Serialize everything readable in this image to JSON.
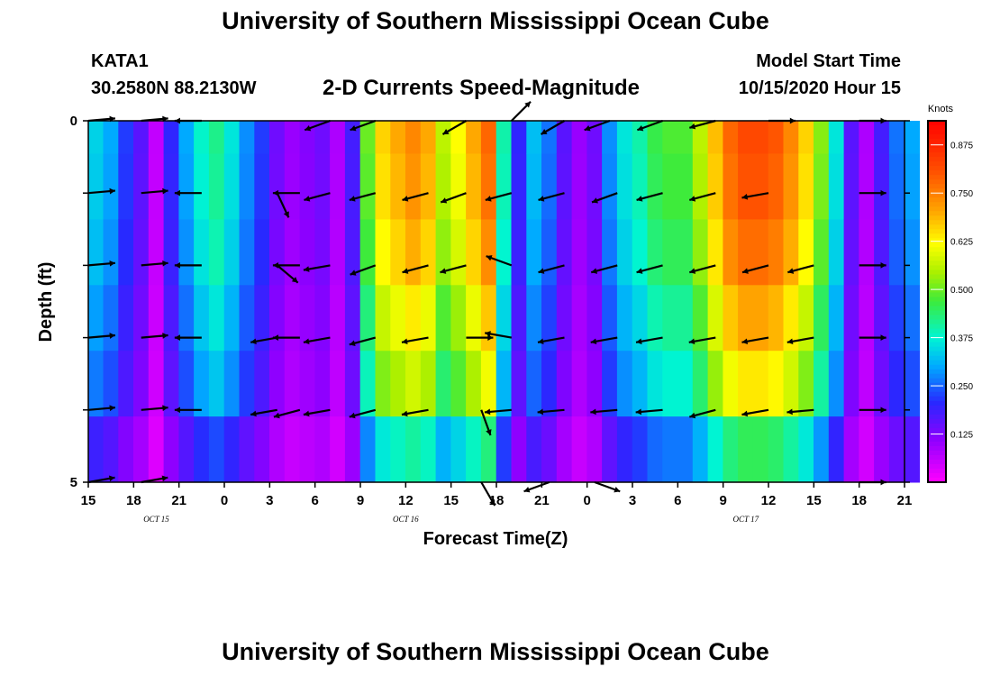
{
  "header": {
    "title": "University of Southern Mississippi Ocean Cube",
    "station": "KATA1",
    "coords": "30.2580N 88.2130W",
    "chart_title": "2-D Currents Speed-Magnitude",
    "model_start_label": "Model Start Time",
    "model_start_value": "10/15/2020 Hour 15"
  },
  "footer": {
    "title": "University of Southern Mississippi Ocean Cube"
  },
  "chart_data": {
    "type": "heatmap",
    "title": "2-D Currents Speed-Magnitude",
    "xlabel": "Forecast Time(Z)",
    "ylabel": "Depth (ft)",
    "x_start_hour": 15,
    "x_hours": 54,
    "x_tick_labels": [
      "15",
      "18",
      "21",
      "0",
      "3",
      "6",
      "9",
      "12",
      "15",
      "18",
      "21",
      "0",
      "3",
      "6",
      "9",
      "12",
      "15",
      "18",
      "21"
    ],
    "date_labels": [
      {
        "text": "OCT 15",
        "hour": 19.5
      },
      {
        "text": "OCT 16",
        "hour": 36
      },
      {
        "text": "OCT 17",
        "hour": 58.5
      }
    ],
    "y_tick_labels": [
      "0",
      "5"
    ],
    "ylim": [
      0,
      5
    ],
    "depth_levels": 5,
    "colorbar": {
      "label": "Knots",
      "ticks": [
        "0.875",
        "0.750",
        "0.625",
        "0.500",
        "0.375",
        "0.250",
        "0.125"
      ],
      "range": [
        0,
        0.9375
      ]
    },
    "speed_profile": [
      {
        "h": 15,
        "s": 0.34
      },
      {
        "h": 16,
        "s": 0.3
      },
      {
        "h": 17,
        "s": 0.22
      },
      {
        "h": 18,
        "s": 0.16
      },
      {
        "h": 19,
        "s": 0.06
      },
      {
        "h": 20,
        "s": 0.2
      },
      {
        "h": 21,
        "s": 0.3
      },
      {
        "h": 22,
        "s": 0.38
      },
      {
        "h": 23,
        "s": 0.42
      },
      {
        "h": 24,
        "s": 0.36
      },
      {
        "h": 25,
        "s": 0.28
      },
      {
        "h": 26,
        "s": 0.22
      },
      {
        "h": 27,
        "s": 0.14
      },
      {
        "h": 28,
        "s": 0.1
      },
      {
        "h": 29,
        "s": 0.12
      },
      {
        "h": 30,
        "s": 0.14
      },
      {
        "h": 31,
        "s": 0.08
      },
      {
        "h": 32,
        "s": 0.18
      },
      {
        "h": 33,
        "s": 0.5
      },
      {
        "h": 34,
        "s": 0.66
      },
      {
        "h": 35,
        "s": 0.7
      },
      {
        "h": 36,
        "s": 0.74
      },
      {
        "h": 37,
        "s": 0.7
      },
      {
        "h": 38,
        "s": 0.56
      },
      {
        "h": 39,
        "s": 0.62
      },
      {
        "h": 40,
        "s": 0.7
      },
      {
        "h": 41,
        "s": 0.78
      },
      {
        "h": 42,
        "s": 0.4
      },
      {
        "h": 43,
        "s": 0.2
      },
      {
        "h": 44,
        "s": 0.32
      },
      {
        "h": 45,
        "s": 0.26
      },
      {
        "h": 46,
        "s": 0.16
      },
      {
        "h": 47,
        "s": 0.1
      },
      {
        "h": 48,
        "s": 0.14
      },
      {
        "h": 49,
        "s": 0.28
      },
      {
        "h": 50,
        "s": 0.36
      },
      {
        "h": 51,
        "s": 0.4
      },
      {
        "h": 52,
        "s": 0.46
      },
      {
        "h": 53,
        "s": 0.48
      },
      {
        "h": 54,
        "s": 0.48
      },
      {
        "h": 55,
        "s": 0.56
      },
      {
        "h": 56,
        "s": 0.68
      },
      {
        "h": 57,
        "s": 0.78
      },
      {
        "h": 58,
        "s": 0.82
      },
      {
        "h": 59,
        "s": 0.82
      },
      {
        "h": 60,
        "s": 0.8
      },
      {
        "h": 61,
        "s": 0.74
      },
      {
        "h": 62,
        "s": 0.66
      },
      {
        "h": 63,
        "s": 0.52
      },
      {
        "h": 64,
        "s": 0.36
      },
      {
        "h": 65,
        "s": 0.16
      },
      {
        "h": 66,
        "s": 0.08
      },
      {
        "h": 67,
        "s": 0.18
      },
      {
        "h": 68,
        "s": 0.26
      },
      {
        "h": 69,
        "s": 0.3
      }
    ],
    "depth_factors": [
      1.0,
      0.98,
      0.94,
      0.86,
      0.78,
      0.55
    ],
    "arrows": [
      {
        "h": 15.0,
        "d": 0,
        "a": 5
      },
      {
        "h": 18.5,
        "d": 0,
        "a": 5
      },
      {
        "h": 22.5,
        "d": 0,
        "a": 180
      },
      {
        "h": 31.0,
        "d": 0,
        "a": 200
      },
      {
        "h": 34.0,
        "d": 0,
        "a": 200
      },
      {
        "h": 40.0,
        "d": 0,
        "a": 210
      },
      {
        "h": 43.0,
        "d": 0,
        "a": 45
      },
      {
        "h": 46.5,
        "d": 0,
        "a": 210
      },
      {
        "h": 49.5,
        "d": 0,
        "a": 200
      },
      {
        "h": 53.0,
        "d": 0,
        "a": 200
      },
      {
        "h": 56.5,
        "d": 0,
        "a": 195
      },
      {
        "h": 60.0,
        "d": 0,
        "a": 0
      },
      {
        "h": 66.0,
        "d": 0,
        "a": 0
      },
      {
        "h": 15.0,
        "d": 1,
        "a": 5
      },
      {
        "h": 18.5,
        "d": 1,
        "a": 5
      },
      {
        "h": 22.5,
        "d": 1,
        "a": 180
      },
      {
        "h": 27.5,
        "d": 1,
        "a": 295
      },
      {
        "h": 29.0,
        "d": 1,
        "a": 180
      },
      {
        "h": 31.0,
        "d": 1,
        "a": 195
      },
      {
        "h": 34.0,
        "d": 1,
        "a": 195
      },
      {
        "h": 37.5,
        "d": 1,
        "a": 195
      },
      {
        "h": 40.0,
        "d": 1,
        "a": 200
      },
      {
        "h": 43.0,
        "d": 1,
        "a": 195
      },
      {
        "h": 46.5,
        "d": 1,
        "a": 195
      },
      {
        "h": 50.0,
        "d": 1,
        "a": 200
      },
      {
        "h": 53.0,
        "d": 1,
        "a": 195
      },
      {
        "h": 56.5,
        "d": 1,
        "a": 195
      },
      {
        "h": 60.0,
        "d": 1,
        "a": 190
      },
      {
        "h": 66.0,
        "d": 1,
        "a": 0
      },
      {
        "h": 15.0,
        "d": 2,
        "a": 5
      },
      {
        "h": 18.5,
        "d": 2,
        "a": 5
      },
      {
        "h": 22.5,
        "d": 2,
        "a": 180
      },
      {
        "h": 27.5,
        "d": 2,
        "a": 320
      },
      {
        "h": 29.0,
        "d": 2,
        "a": 180
      },
      {
        "h": 31.0,
        "d": 2,
        "a": 190
      },
      {
        "h": 34.0,
        "d": 2,
        "a": 200
      },
      {
        "h": 37.5,
        "d": 2,
        "a": 195
      },
      {
        "h": 40.0,
        "d": 2,
        "a": 195
      },
      {
        "h": 43.0,
        "d": 2,
        "a": 160
      },
      {
        "h": 46.5,
        "d": 2,
        "a": 195
      },
      {
        "h": 50.0,
        "d": 2,
        "a": 195
      },
      {
        "h": 53.0,
        "d": 2,
        "a": 195
      },
      {
        "h": 56.5,
        "d": 2,
        "a": 195
      },
      {
        "h": 60.0,
        "d": 2,
        "a": 195
      },
      {
        "h": 63.0,
        "d": 2,
        "a": 195
      },
      {
        "h": 66.0,
        "d": 2,
        "a": 0
      },
      {
        "h": 15.0,
        "d": 3,
        "a": 5
      },
      {
        "h": 18.5,
        "d": 3,
        "a": 5
      },
      {
        "h": 22.5,
        "d": 3,
        "a": 180
      },
      {
        "h": 27.5,
        "d": 3,
        "a": 190
      },
      {
        "h": 29.0,
        "d": 3,
        "a": 180
      },
      {
        "h": 31.0,
        "d": 3,
        "a": 190
      },
      {
        "h": 34.0,
        "d": 3,
        "a": 195
      },
      {
        "h": 37.5,
        "d": 3,
        "a": 190
      },
      {
        "h": 40.0,
        "d": 3,
        "a": 0
      },
      {
        "h": 43.0,
        "d": 3,
        "a": 170
      },
      {
        "h": 46.5,
        "d": 3,
        "a": 190
      },
      {
        "h": 50.0,
        "d": 3,
        "a": 190
      },
      {
        "h": 53.0,
        "d": 3,
        "a": 190
      },
      {
        "h": 56.5,
        "d": 3,
        "a": 190
      },
      {
        "h": 60.0,
        "d": 3,
        "a": 190
      },
      {
        "h": 63.0,
        "d": 3,
        "a": 190
      },
      {
        "h": 66.0,
        "d": 3,
        "a": 0
      },
      {
        "h": 15.0,
        "d": 4,
        "a": 5
      },
      {
        "h": 18.5,
        "d": 4,
        "a": 5
      },
      {
        "h": 22.5,
        "d": 4,
        "a": 180
      },
      {
        "h": 27.5,
        "d": 4,
        "a": 190
      },
      {
        "h": 29.0,
        "d": 4,
        "a": 195
      },
      {
        "h": 31.0,
        "d": 4,
        "a": 190
      },
      {
        "h": 34.0,
        "d": 4,
        "a": 195
      },
      {
        "h": 37.5,
        "d": 4,
        "a": 190
      },
      {
        "h": 41.0,
        "d": 4,
        "a": 290
      },
      {
        "h": 43.0,
        "d": 4,
        "a": 185
      },
      {
        "h": 46.5,
        "d": 4,
        "a": 185
      },
      {
        "h": 50.0,
        "d": 4,
        "a": 185
      },
      {
        "h": 53.0,
        "d": 4,
        "a": 185
      },
      {
        "h": 56.5,
        "d": 4,
        "a": 195
      },
      {
        "h": 60.0,
        "d": 4,
        "a": 190
      },
      {
        "h": 63.0,
        "d": 4,
        "a": 185
      },
      {
        "h": 66.0,
        "d": 4,
        "a": 0
      },
      {
        "h": 15.0,
        "d": 5,
        "a": 10
      },
      {
        "h": 18.5,
        "d": 5,
        "a": 10
      },
      {
        "h": 41.0,
        "d": 5,
        "a": 300
      },
      {
        "h": 45.5,
        "d": 5,
        "a": 200
      },
      {
        "h": 48.5,
        "d": 5,
        "a": 340
      },
      {
        "h": 66.0,
        "d": 5,
        "a": 0
      }
    ]
  }
}
